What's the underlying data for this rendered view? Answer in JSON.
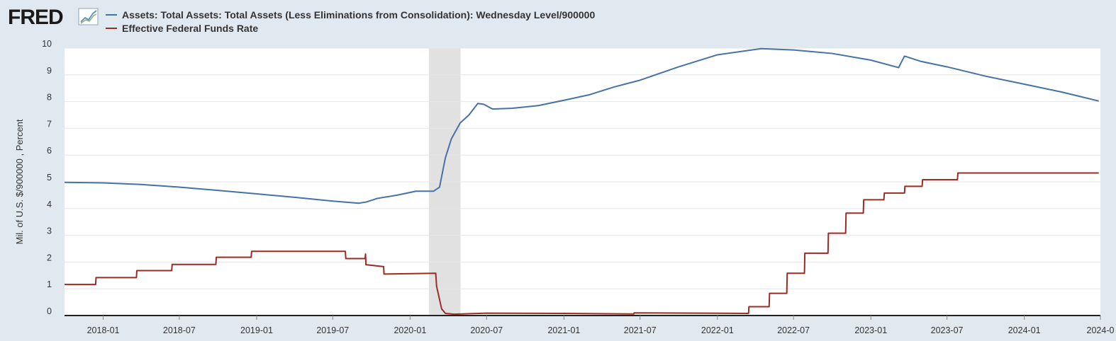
{
  "brand": {
    "logo_text": "FRED"
  },
  "colors": {
    "series1": "#4572a7",
    "series2": "#9c2b23",
    "recession": "#e1e1e1",
    "plot_bg": "#ffffff",
    "page_bg": "#e1e9f0",
    "grid": "#e6e6e6"
  },
  "chart_data": {
    "type": "line",
    "ylabel": "Mil. of U.S. $/900000 , Percent",
    "xlim": [
      "2017-10-01",
      "2024-06-30"
    ],
    "ylim": [
      0,
      10
    ],
    "yticks": [
      0,
      1,
      2,
      3,
      4,
      5,
      6,
      7,
      8,
      9,
      10
    ],
    "xticks": [
      "2018-01",
      "2018-07",
      "2019-01",
      "2019-07",
      "2020-01",
      "2020-07",
      "2021-01",
      "2021-07",
      "2022-01",
      "2022-07",
      "2023-01",
      "2023-07",
      "2024-01",
      "2024-0"
    ],
    "grid": true,
    "legend_position": "top-left",
    "recession": {
      "start": "2020-02-15",
      "end": "2020-04-30"
    },
    "series": [
      {
        "name": "Assets: Total Assets: Total Assets (Less Eliminations from Consolidation): Wednesday Level/900000",
        "color": "#4572a7",
        "points": [
          [
            "2017-10-01",
            4.98
          ],
          [
            "2018-01-01",
            4.96
          ],
          [
            "2018-04-01",
            4.9
          ],
          [
            "2018-07-01",
            4.8
          ],
          [
            "2018-10-01",
            4.68
          ],
          [
            "2019-01-01",
            4.55
          ],
          [
            "2019-04-01",
            4.42
          ],
          [
            "2019-07-01",
            4.28
          ],
          [
            "2019-09-01",
            4.2
          ],
          [
            "2019-09-20",
            4.25
          ],
          [
            "2019-10-15",
            4.38
          ],
          [
            "2019-12-01",
            4.5
          ],
          [
            "2020-01-15",
            4.65
          ],
          [
            "2020-02-26",
            4.65
          ],
          [
            "2020-03-11",
            4.8
          ],
          [
            "2020-03-25",
            5.9
          ],
          [
            "2020-04-08",
            6.6
          ],
          [
            "2020-04-29",
            7.2
          ],
          [
            "2020-05-20",
            7.5
          ],
          [
            "2020-06-10",
            7.93
          ],
          [
            "2020-06-24",
            7.9
          ],
          [
            "2020-07-15",
            7.72
          ],
          [
            "2020-09-01",
            7.75
          ],
          [
            "2020-11-01",
            7.85
          ],
          [
            "2021-01-01",
            8.05
          ],
          [
            "2021-03-01",
            8.25
          ],
          [
            "2021-05-01",
            8.55
          ],
          [
            "2021-07-01",
            8.8
          ],
          [
            "2021-10-01",
            9.3
          ],
          [
            "2022-01-01",
            9.75
          ],
          [
            "2022-04-15",
            9.98
          ],
          [
            "2022-07-01",
            9.93
          ],
          [
            "2022-10-01",
            9.8
          ],
          [
            "2023-01-01",
            9.55
          ],
          [
            "2023-03-01",
            9.3
          ],
          [
            "2023-03-08",
            9.27
          ],
          [
            "2023-03-22",
            9.7
          ],
          [
            "2023-05-01",
            9.5
          ],
          [
            "2023-07-01",
            9.3
          ],
          [
            "2023-10-01",
            8.95
          ],
          [
            "2024-01-01",
            8.65
          ],
          [
            "2024-04-01",
            8.35
          ],
          [
            "2024-06-26",
            8.02
          ]
        ]
      },
      {
        "name": "Effective Federal Funds Rate",
        "color": "#9c2b23",
        "points": [
          [
            "2017-10-01",
            1.16
          ],
          [
            "2017-12-14",
            1.16
          ],
          [
            "2017-12-15",
            1.42
          ],
          [
            "2018-03-21",
            1.42
          ],
          [
            "2018-03-22",
            1.68
          ],
          [
            "2018-06-13",
            1.68
          ],
          [
            "2018-06-14",
            1.91
          ],
          [
            "2018-09-26",
            1.91
          ],
          [
            "2018-09-27",
            2.18
          ],
          [
            "2018-12-19",
            2.18
          ],
          [
            "2018-12-20",
            2.4
          ],
          [
            "2019-07-31",
            2.4
          ],
          [
            "2019-08-01",
            2.13
          ],
          [
            "2019-09-16",
            2.13
          ],
          [
            "2019-09-17",
            2.3
          ],
          [
            "2019-09-18",
            1.9
          ],
          [
            "2019-10-30",
            1.83
          ],
          [
            "2019-10-31",
            1.55
          ],
          [
            "2020-03-02",
            1.58
          ],
          [
            "2020-03-04",
            1.1
          ],
          [
            "2020-03-16",
            0.25
          ],
          [
            "2020-03-25",
            0.08
          ],
          [
            "2020-04-15",
            0.05
          ],
          [
            "2020-07-01",
            0.09
          ],
          [
            "2021-01-01",
            0.08
          ],
          [
            "2021-06-16",
            0.06
          ],
          [
            "2021-06-17",
            0.1
          ],
          [
            "2022-03-16",
            0.08
          ],
          [
            "2022-03-17",
            0.33
          ],
          [
            "2022-05-04",
            0.33
          ],
          [
            "2022-05-05",
            0.83
          ],
          [
            "2022-06-15",
            0.83
          ],
          [
            "2022-06-16",
            1.58
          ],
          [
            "2022-07-27",
            1.58
          ],
          [
            "2022-07-28",
            2.33
          ],
          [
            "2022-09-21",
            2.33
          ],
          [
            "2022-09-22",
            3.08
          ],
          [
            "2022-11-02",
            3.08
          ],
          [
            "2022-11-03",
            3.83
          ],
          [
            "2022-12-14",
            3.83
          ],
          [
            "2022-12-15",
            4.33
          ],
          [
            "2023-02-01",
            4.33
          ],
          [
            "2023-02-02",
            4.58
          ],
          [
            "2023-03-22",
            4.58
          ],
          [
            "2023-03-23",
            4.83
          ],
          [
            "2023-05-03",
            4.83
          ],
          [
            "2023-05-04",
            5.08
          ],
          [
            "2023-07-26",
            5.08
          ],
          [
            "2023-07-27",
            5.33
          ],
          [
            "2024-06-26",
            5.33
          ]
        ]
      }
    ]
  }
}
